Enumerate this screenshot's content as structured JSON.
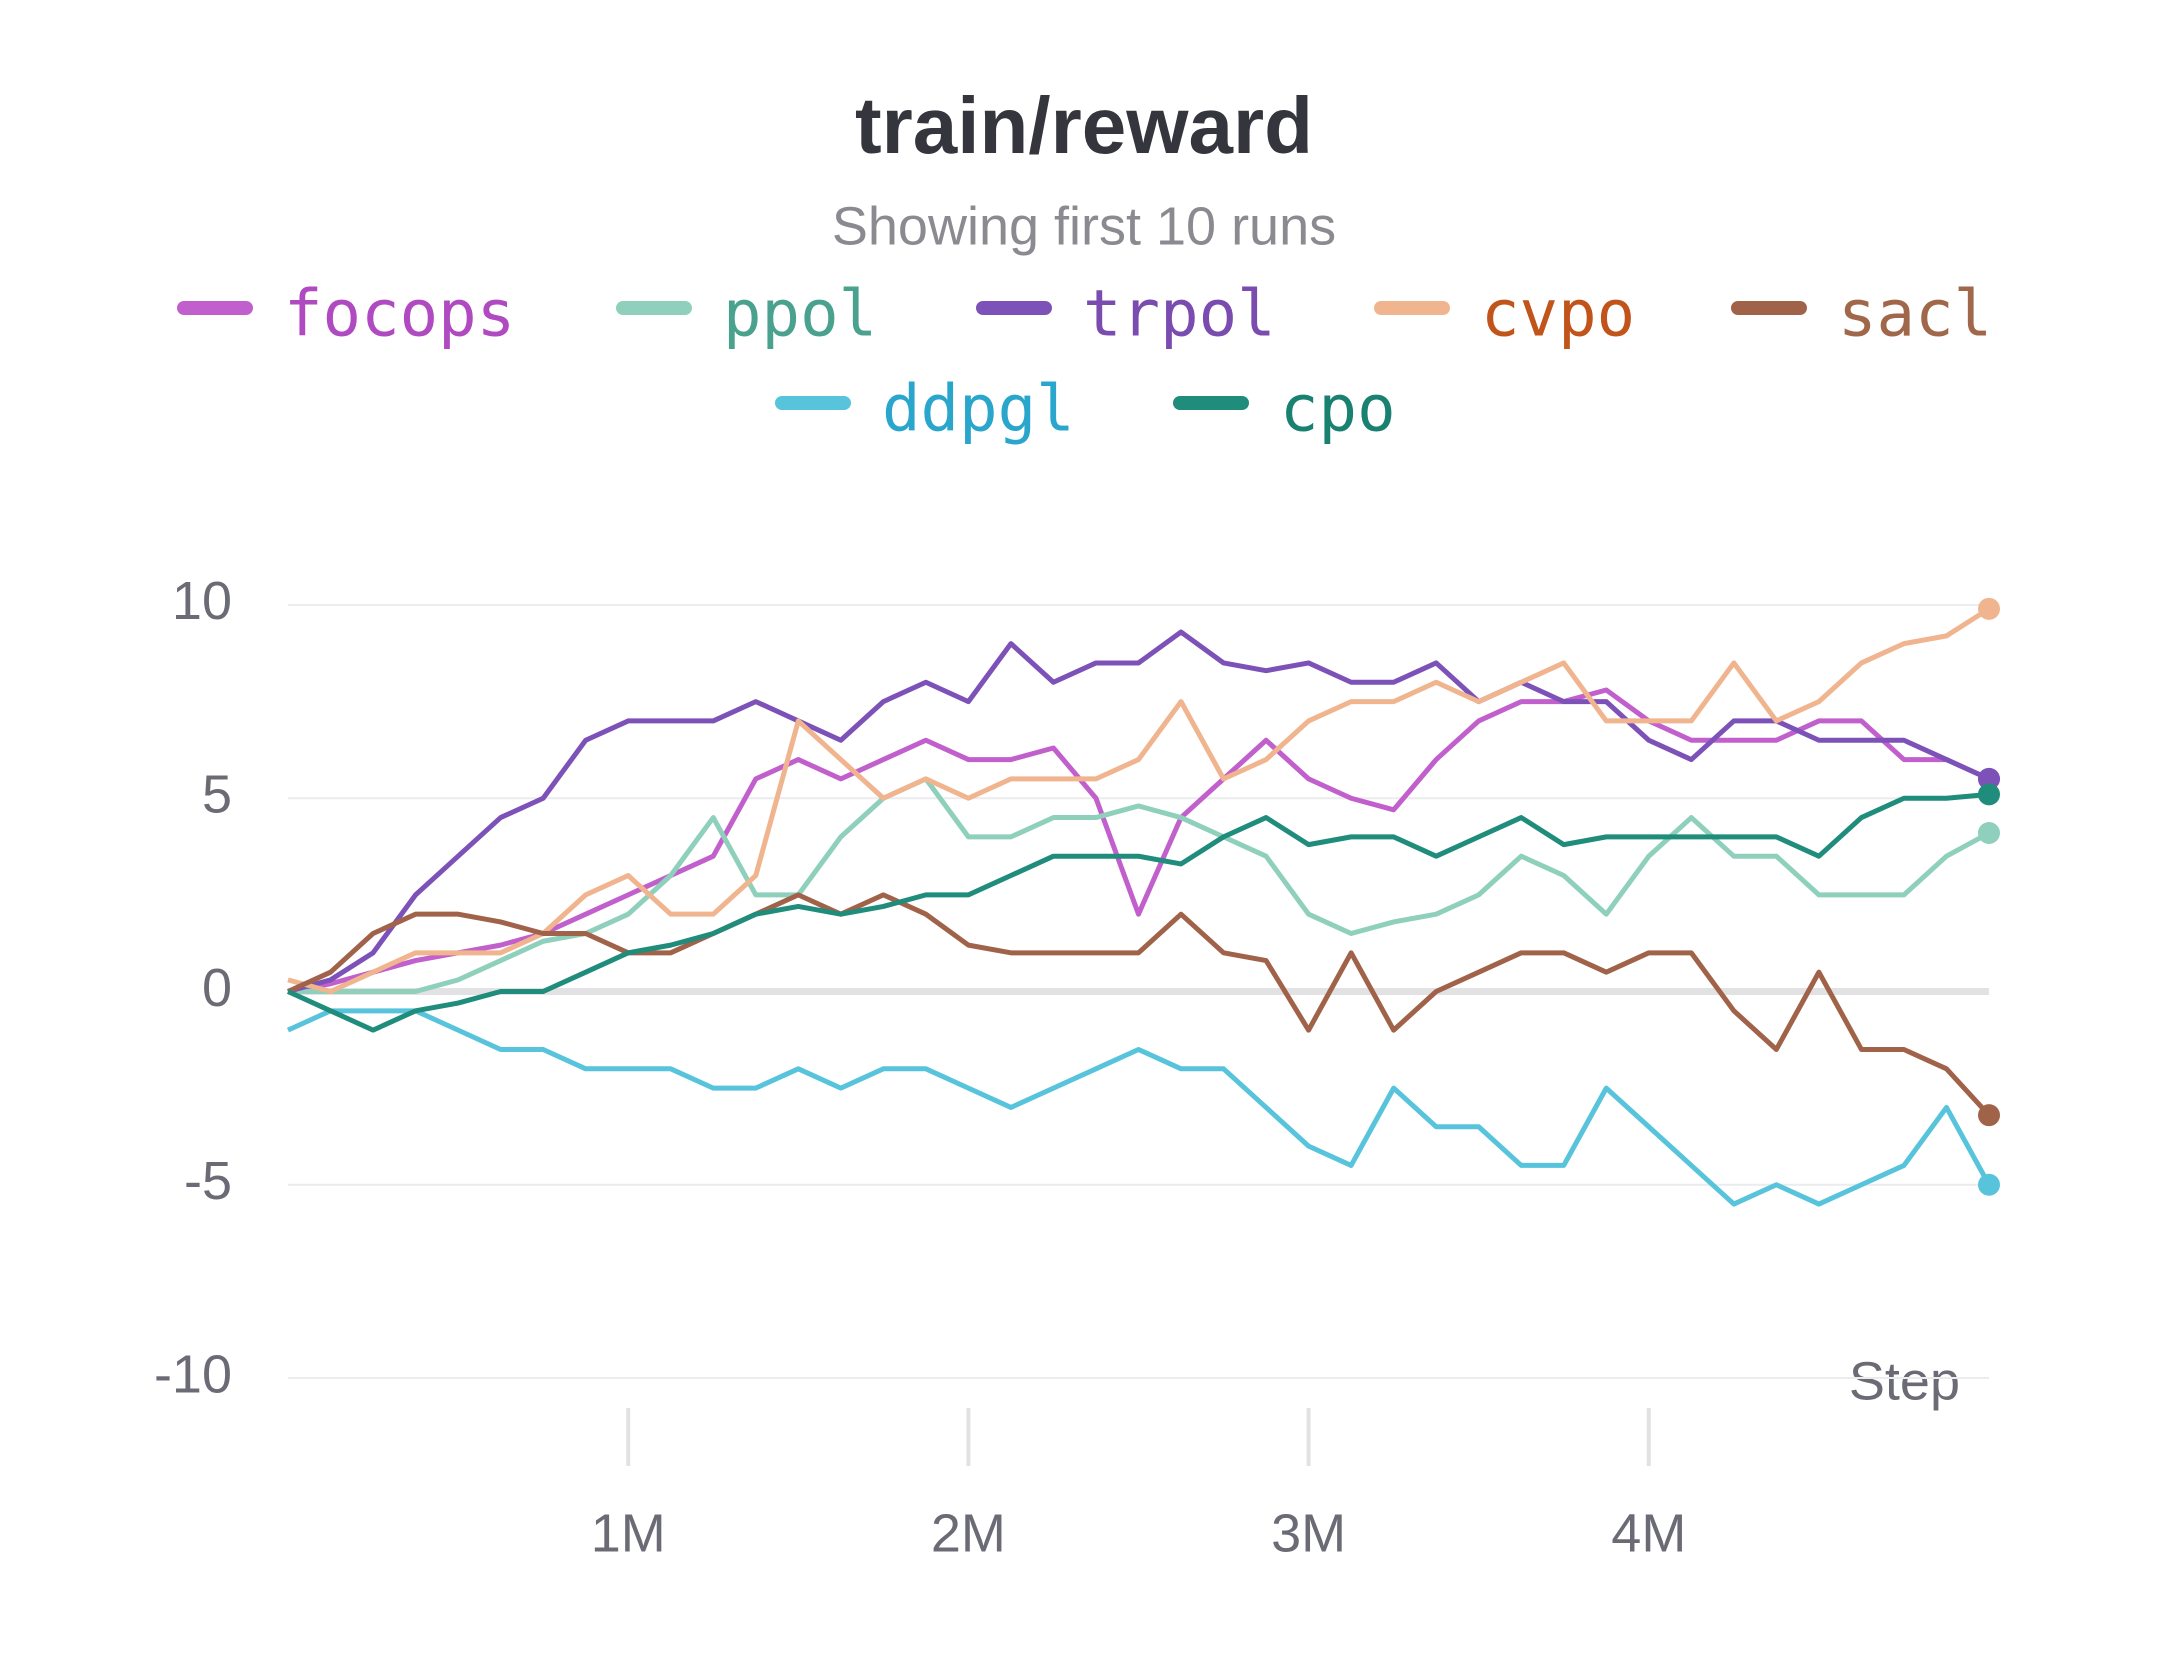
{
  "chart_data": {
    "type": "line",
    "title": "train/reward",
    "subtitle": "Showing first 10 runs",
    "x_label": "Step",
    "x": [
      0,
      125000,
      250000,
      375000,
      500000,
      625000,
      750000,
      875000,
      1000000,
      1125000,
      1250000,
      1375000,
      1500000,
      1625000,
      1750000,
      1875000,
      2000000,
      2125000,
      2250000,
      2375000,
      2500000,
      2625000,
      2750000,
      2875000,
      3000000,
      3125000,
      3250000,
      3375000,
      3500000,
      3625000,
      3750000,
      3875000,
      4000000,
      4125000,
      4250000,
      4375000,
      4500000,
      4625000,
      4750000,
      4875000,
      5000000
    ],
    "series": [
      {
        "name": "focops",
        "color": "#c160cc",
        "label_color": "#b04ac0",
        "values": [
          0,
          0.2,
          0.5,
          0.8,
          1,
          1.2,
          1.5,
          2,
          2.5,
          3,
          3.5,
          5.5,
          6,
          5.5,
          6,
          6.5,
          6,
          6,
          6.3,
          5,
          2,
          4.5,
          5.5,
          6.5,
          5.5,
          5,
          4.7,
          6,
          7,
          7.5,
          7.5,
          7.8,
          7,
          6.5,
          6.5,
          6.5,
          7,
          7,
          6,
          6,
          5.5
        ]
      },
      {
        "name": "ppol",
        "color": "#8fd0bd",
        "label_color": "#4aa28e",
        "values": [
          0,
          0,
          0,
          0,
          0.3,
          0.8,
          1.3,
          1.5,
          2,
          3,
          4.5,
          2.5,
          2.5,
          4,
          5,
          5.5,
          4,
          4,
          4.5,
          4.5,
          4.8,
          4.5,
          4,
          3.5,
          2,
          1.5,
          1.8,
          2,
          2.5,
          3.5,
          3,
          2,
          3.5,
          4.5,
          3.5,
          3.5,
          2.5,
          2.5,
          2.5,
          3.5,
          4.1
        ]
      },
      {
        "name": "trpol",
        "color": "#7d52b8",
        "label_color": "#7a4cb0",
        "values": [
          0,
          0.3,
          1,
          2.5,
          3.5,
          4.5,
          5,
          6.5,
          7,
          7,
          7,
          7.5,
          7,
          6.5,
          7.5,
          8,
          7.5,
          9,
          8,
          8.5,
          8.5,
          9.3,
          8.5,
          8.3,
          8.5,
          8,
          8,
          8.5,
          7.5,
          8,
          7.5,
          7.5,
          6.5,
          6,
          7,
          7,
          6.5,
          6.5,
          6.5,
          6,
          5.5
        ]
      },
      {
        "name": "cvpo",
        "color": "#f0b48e",
        "label_color": "#c0541a",
        "values": [
          0.3,
          0,
          0.5,
          1,
          1,
          1,
          1.5,
          2.5,
          3,
          2,
          2,
          3,
          7,
          6,
          5,
          5.5,
          5,
          5.5,
          5.5,
          5.5,
          6,
          7.5,
          5.5,
          6,
          7,
          7.5,
          7.5,
          8,
          7.5,
          8,
          8.5,
          7,
          7,
          7,
          8.5,
          7,
          7.5,
          8.5,
          9,
          9.2,
          9.9
        ]
      },
      {
        "name": "sacl",
        "color": "#a0634a",
        "label_color": "#a0674a",
        "values": [
          0,
          0.5,
          1.5,
          2,
          2,
          1.8,
          1.5,
          1.5,
          1,
          1,
          1.5,
          2,
          2.5,
          2,
          2.5,
          2,
          1.2,
          1,
          1,
          1,
          1,
          2,
          1,
          0.8,
          -1,
          1,
          -1,
          0,
          0.5,
          1,
          1,
          0.5,
          1,
          1,
          -0.5,
          -1.5,
          0.5,
          -1.5,
          -1.5,
          -2,
          -3.2
        ]
      },
      {
        "name": "ddpgl",
        "color": "#58c4dc",
        "label_color": "#2aa6cc",
        "values": [
          -1,
          -0.5,
          -0.5,
          -0.5,
          -1,
          -1.5,
          -1.5,
          -2,
          -2,
          -2,
          -2.5,
          -2.5,
          -2,
          -2.5,
          -2,
          -2,
          -2.5,
          -3,
          -2.5,
          -2,
          -1.5,
          -2,
          -2,
          -3,
          -4,
          -4.5,
          -2.5,
          -3.5,
          -3.5,
          -4.5,
          -4.5,
          -2.5,
          -3.5,
          -4.5,
          -5.5,
          -5,
          -5.5,
          -5,
          -4.5,
          -3,
          -5
        ]
      },
      {
        "name": "cpo",
        "color": "#1f8c7c",
        "label_color": "#1a8070",
        "values": [
          0,
          -0.5,
          -1,
          -0.5,
          -0.3,
          0,
          0,
          0.5,
          1,
          1.2,
          1.5,
          2,
          2.2,
          2,
          2.2,
          2.5,
          2.5,
          3,
          3.5,
          3.5,
          3.5,
          3.3,
          4,
          4.5,
          3.8,
          4,
          4,
          3.5,
          4,
          4.5,
          3.8,
          4,
          4,
          4,
          4,
          4,
          3.5,
          4.5,
          5,
          5,
          5.1
        ]
      }
    ],
    "xlim": [
      0,
      5000000
    ],
    "ylim": [
      -11.5,
      13
    ],
    "xticks": [
      {
        "value": 1000000,
        "label": "1M"
      },
      {
        "value": 2000000,
        "label": "2M"
      },
      {
        "value": 3000000,
        "label": "3M"
      },
      {
        "value": 4000000,
        "label": "4M"
      }
    ],
    "yticks": [
      -10,
      -5,
      0,
      5,
      10
    ],
    "grid": true
  }
}
